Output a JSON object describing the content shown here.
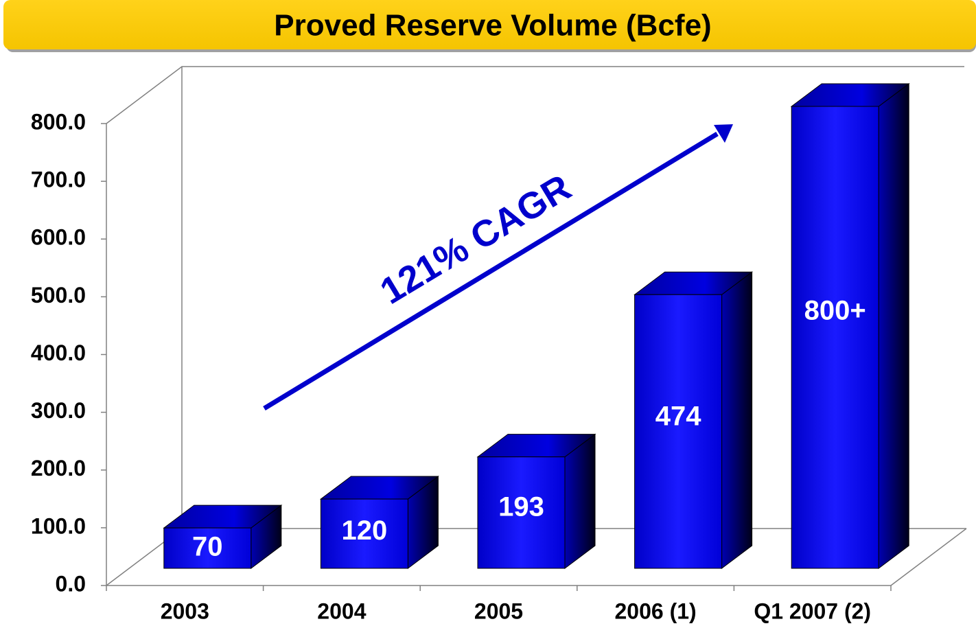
{
  "chart_data": {
    "type": "bar3d",
    "title": "Proved Reserve Volume (Bcfe)",
    "annotation": "121% CAGR",
    "categories": [
      "2003",
      "2004",
      "2005",
      "2006 (1)",
      "Q1 2007 (2)"
    ],
    "values": [
      70,
      120,
      193,
      474,
      800
    ],
    "value_labels": [
      "70",
      "120",
      "193",
      "474",
      "800+"
    ],
    "color": "#0000ee",
    "ylim": [
      0,
      800
    ],
    "yticks": [
      {
        "value": 0,
        "label": "0.0"
      },
      {
        "value": 100,
        "label": "100.0"
      },
      {
        "value": 200,
        "label": "200.0"
      },
      {
        "value": 300,
        "label": "300.0"
      },
      {
        "value": 400,
        "label": "400.0"
      },
      {
        "value": 500,
        "label": "500.0"
      },
      {
        "value": 600,
        "label": "600.0"
      },
      {
        "value": 700,
        "label": "700.0"
      },
      {
        "value": 800,
        "label": "800.0"
      }
    ],
    "grid": false
  }
}
